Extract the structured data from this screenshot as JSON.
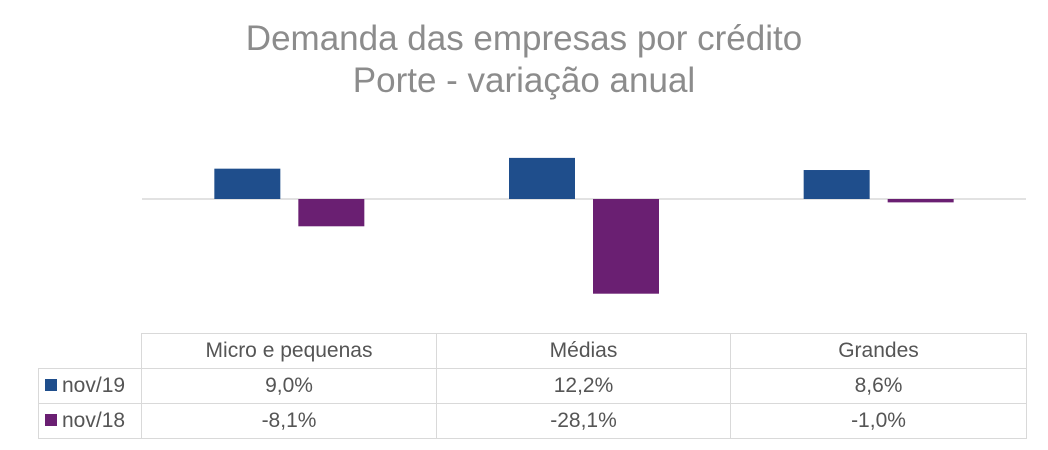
{
  "title_line1": "Demanda das empresas por crédito",
  "title_line2": "Porte - variação anual",
  "colors": {
    "nov19": "#1f4e8c",
    "nov18": "#6a1f72",
    "axis": "#d9d9d9"
  },
  "chart_data": {
    "type": "bar",
    "title": "Demanda das empresas por crédito — Porte - variação anual",
    "categories": [
      "Micro e pequenas",
      "Médias",
      "Grandes"
    ],
    "series": [
      {
        "name": "nov/19",
        "values": [
          9.0,
          12.2,
          8.6
        ],
        "labels": [
          "9,0%",
          "12,2%",
          "8,6%"
        ]
      },
      {
        "name": "nov/18",
        "values": [
          -8.1,
          -28.1,
          -1.0
        ],
        "labels": [
          "-8,1%",
          "-28,1%",
          "-1,0%"
        ]
      }
    ],
    "ylim": [
      -30,
      15
    ],
    "grid": false,
    "legend": "data-table"
  }
}
